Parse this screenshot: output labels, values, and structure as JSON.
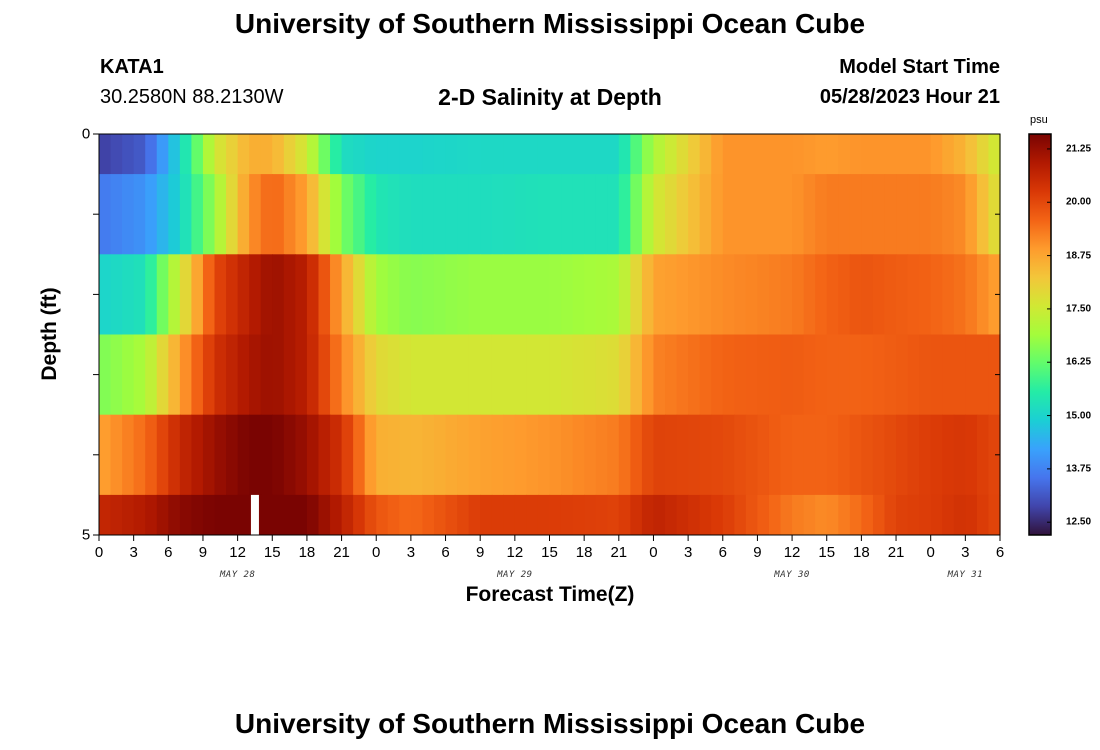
{
  "header": {
    "title": "University of Southern Mississippi Ocean Cube",
    "station_id": "KATA1",
    "coordinates": "30.2580N  88.2130W",
    "plot_title": "2-D Salinity at Depth",
    "model_start_label": "Model Start Time",
    "model_start_value": "05/28/2023 Hour 21"
  },
  "footer": {
    "title": "University of Southern Mississippi Ocean Cube"
  },
  "chart_data": {
    "type": "heatmap",
    "title": "2-D Salinity at Depth",
    "xlabel": "Forecast Time(Z)",
    "ylabel": "Depth (ft)",
    "x_range_hours": [
      0,
      78
    ],
    "y_range_ft": [
      0,
      5
    ],
    "x_tick_labels": [
      "0",
      "3",
      "6",
      "9",
      "12",
      "15",
      "18",
      "21",
      "0",
      "3",
      "6",
      "9",
      "12",
      "15",
      "18",
      "21",
      "0",
      "3",
      "6",
      "9",
      "12",
      "15",
      "18",
      "21",
      "0",
      "3",
      "6"
    ],
    "y_tick_labels": [
      "0",
      "5"
    ],
    "day_labels": [
      {
        "label": "MAY 28",
        "hour": 12
      },
      {
        "label": "MAY 29",
        "hour": 36
      },
      {
        "label": "MAY 30",
        "hour": 60
      },
      {
        "label": "MAY 31",
        "hour": 75
      }
    ],
    "colorbar": {
      "unit": "psu",
      "min": 12.2,
      "max": 21.6,
      "tick_labels": [
        "21.25",
        "20.00",
        "18.75",
        "17.50",
        "16.25",
        "15.00",
        "13.75",
        "12.50"
      ],
      "colors": [
        "#30123b",
        "#4145ab",
        "#4675ed",
        "#39a2fc",
        "#1bcfd4",
        "#24eca6",
        "#61fc6c",
        "#a4fc3b",
        "#d1e834",
        "#f3c63a",
        "#fe9b2d",
        "#f36315",
        "#d93806",
        "#b11901",
        "#7a0402"
      ]
    },
    "depth_bands_ft": [
      [
        0,
        0.5
      ],
      [
        0.5,
        1.5
      ],
      [
        1.5,
        2.5
      ],
      [
        2.5,
        3.5
      ],
      [
        3.5,
        4.5
      ],
      [
        4.5,
        5
      ]
    ],
    "key_hours": [
      0,
      4,
      7,
      10,
      13,
      15,
      18,
      21,
      24,
      27,
      33,
      39,
      45,
      48,
      54,
      60,
      63,
      66,
      69,
      72,
      75,
      78
    ],
    "salinity_psu": [
      [
        12.8,
        13.2,
        15.0,
        17.5,
        18.6,
        18.6,
        17.5,
        15.2,
        15.0,
        15.0,
        15.1,
        15.1,
        15.1,
        17.0,
        19.0,
        19.0,
        18.9,
        19.0,
        19.0,
        19.0,
        18.5,
        17.4
      ],
      [
        13.6,
        14.0,
        15.0,
        16.8,
        19.0,
        19.6,
        18.8,
        16.5,
        15.4,
        15.2,
        15.2,
        15.3,
        15.3,
        17.5,
        19.0,
        19.0,
        19.3,
        19.3,
        19.3,
        19.3,
        19.1,
        17.6
      ],
      [
        15.0,
        15.3,
        17.5,
        20.0,
        20.8,
        21.2,
        20.8,
        18.8,
        16.9,
        16.6,
        16.8,
        16.8,
        17.0,
        18.8,
        19.1,
        19.3,
        19.6,
        19.8,
        19.7,
        19.6,
        19.4,
        18.8
      ],
      [
        16.5,
        17.0,
        18.8,
        20.4,
        21.0,
        21.2,
        20.8,
        19.2,
        17.9,
        17.6,
        17.6,
        17.6,
        17.8,
        19.2,
        19.6,
        19.7,
        19.6,
        19.6,
        19.7,
        19.8,
        19.8,
        19.8
      ],
      [
        18.8,
        19.5,
        20.6,
        21.2,
        21.6,
        21.6,
        21.2,
        20.4,
        18.6,
        18.5,
        18.8,
        19.0,
        19.3,
        20.1,
        20.0,
        19.6,
        19.6,
        19.8,
        20.0,
        20.2,
        20.3,
        20.0
      ],
      [
        20.6,
        20.9,
        21.4,
        21.6,
        21.6,
        21.7,
        21.6,
        20.8,
        19.8,
        19.5,
        20.2,
        20.2,
        20.1,
        20.7,
        20.2,
        19.3,
        19.1,
        19.5,
        20.1,
        20.2,
        20.4,
        20.0
      ]
    ],
    "missing_data": [
      {
        "hour": 13.5,
        "depth_band": 5
      }
    ]
  }
}
